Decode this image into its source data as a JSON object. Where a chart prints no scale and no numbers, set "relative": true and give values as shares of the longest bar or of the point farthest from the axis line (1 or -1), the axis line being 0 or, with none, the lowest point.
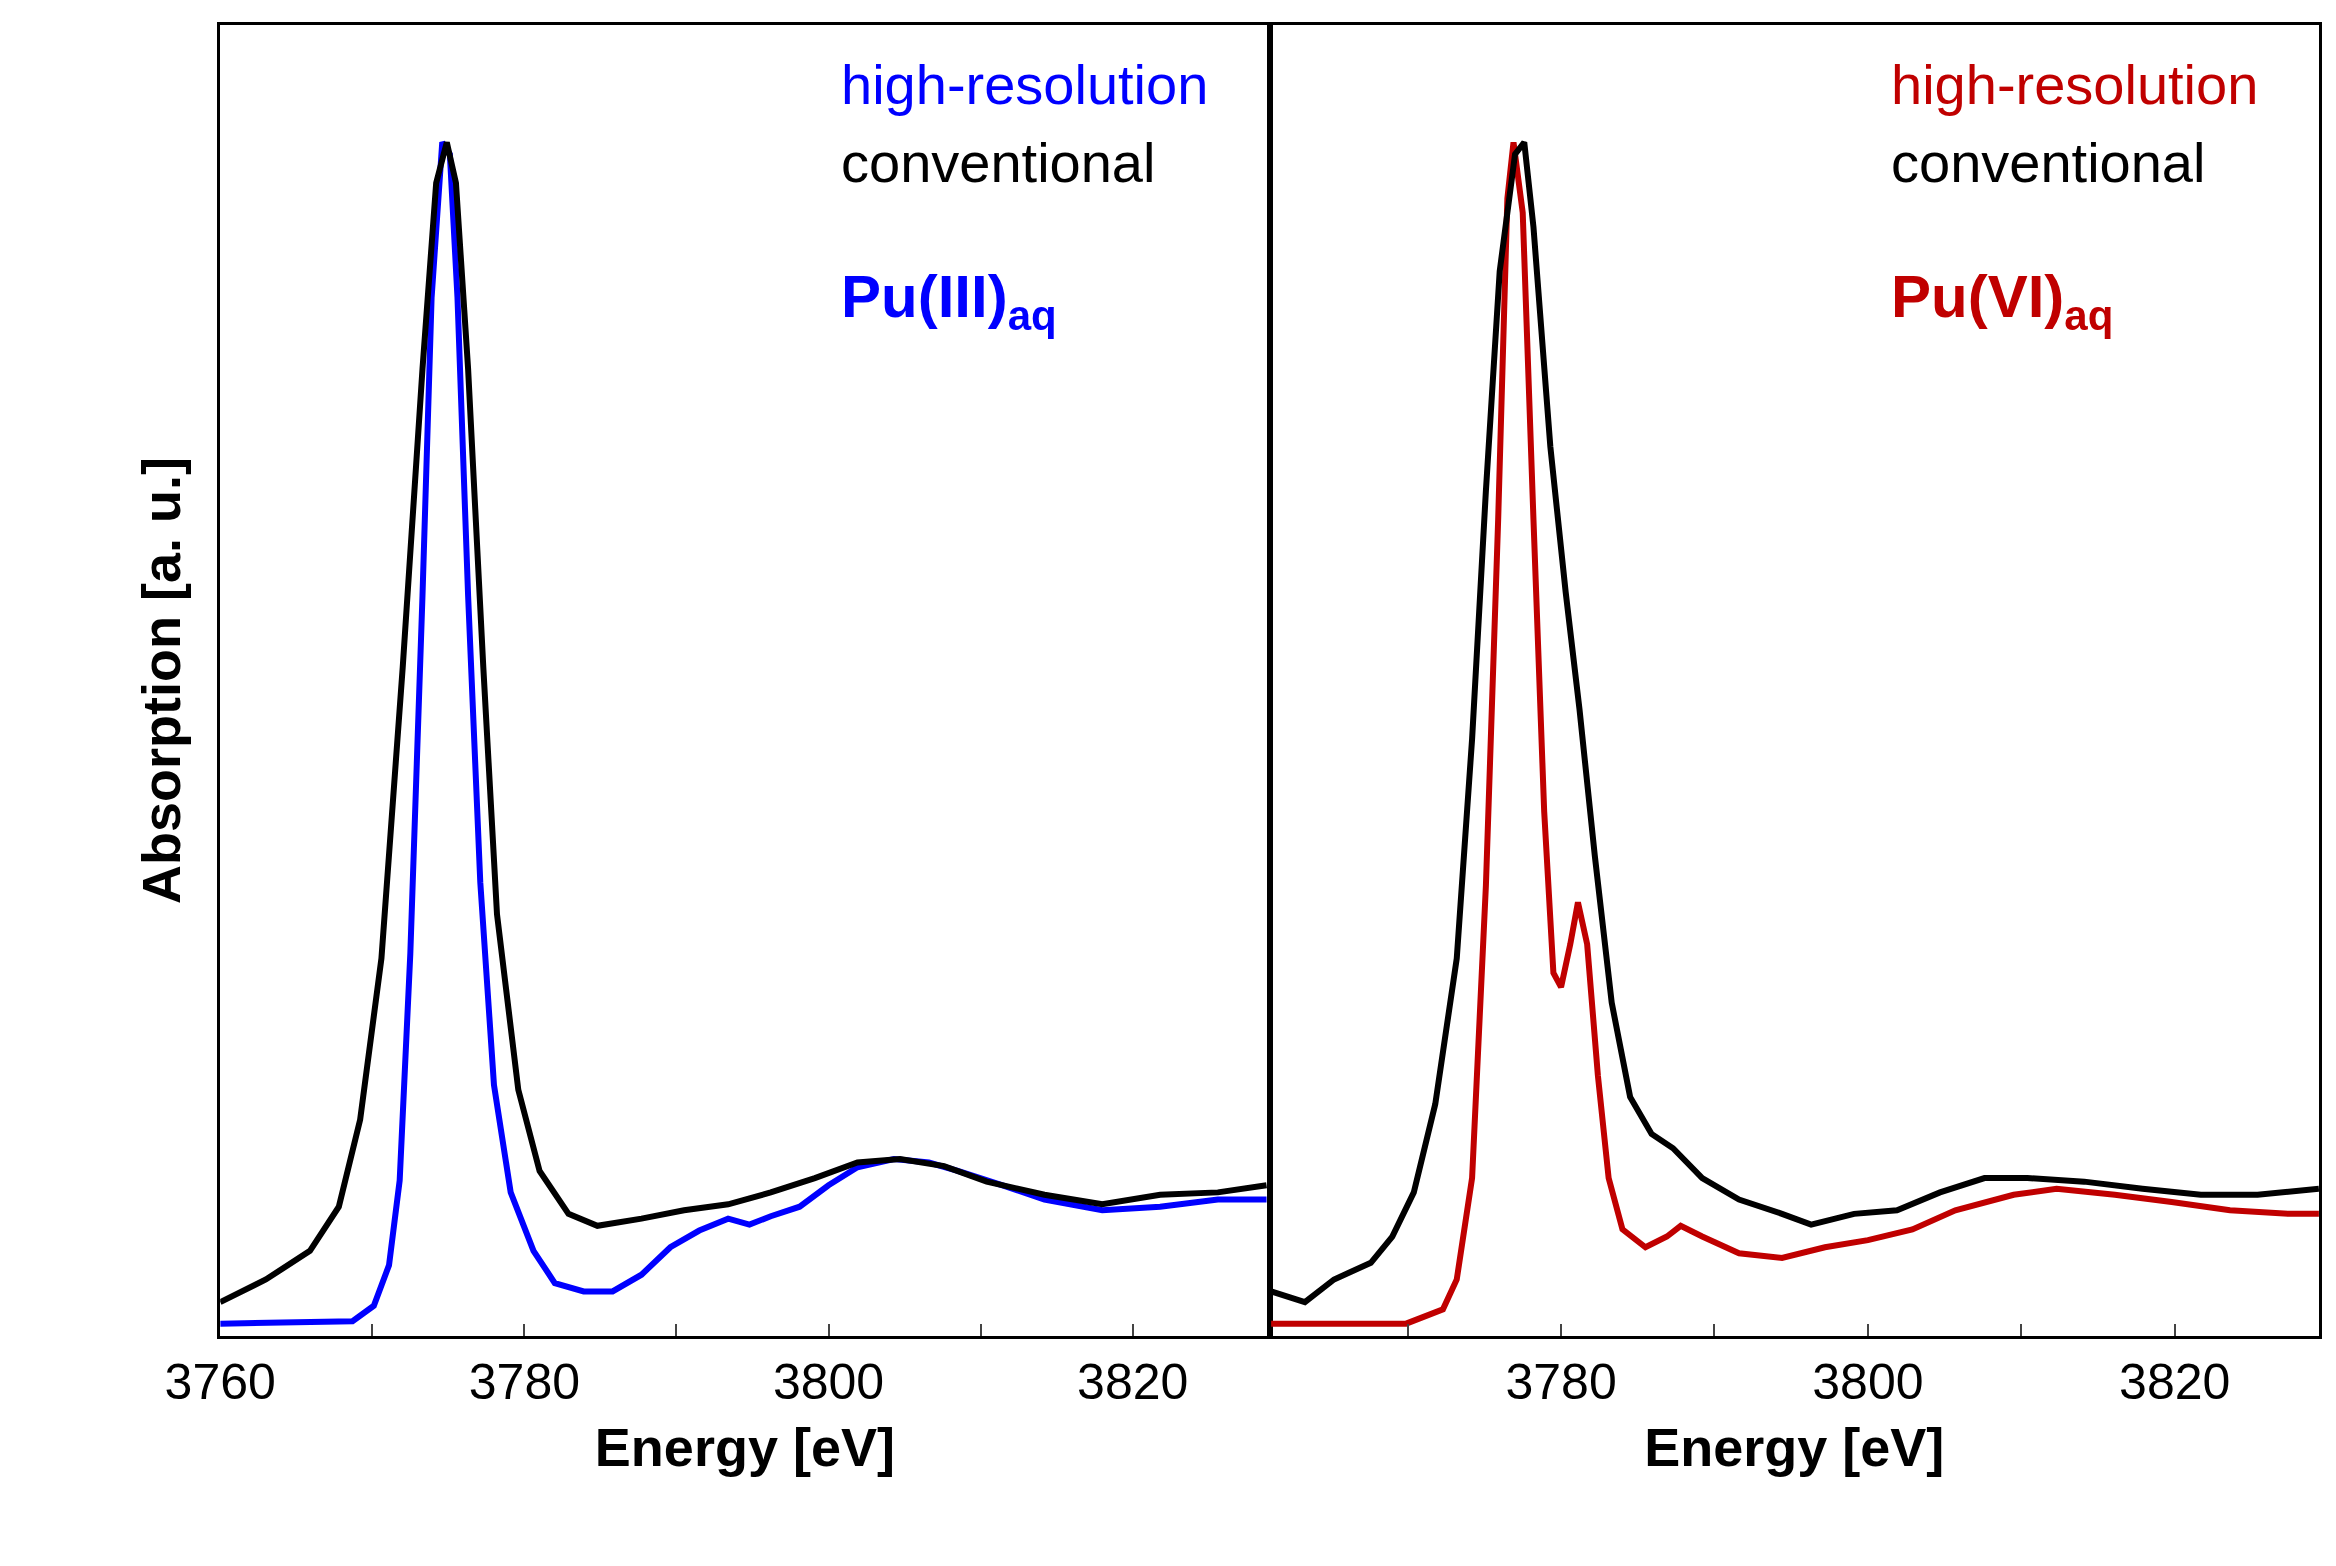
{
  "chart_data": [
    {
      "type": "line",
      "relative": true,
      "xlabel": "Energy [eV]",
      "ylabel": "Absorption [a. u.]",
      "annotations": [
        "Pu(III)$_{aq}$"
      ],
      "legend": "top right",
      "xlim": [
        3760,
        3829
      ],
      "xticks": [
        3760,
        {
          "value": 3770,
          "label": null
        },
        3780,
        {
          "value": 3790,
          "label": null
        },
        3800,
        {
          "value": 3810,
          "label": null
        },
        3820
      ],
      "series": [
        {
          "name": "high-resolution",
          "color": "#0000ff",
          "x": [
            3760,
            3768.7,
            3770.1,
            3771.1,
            3771.8,
            3772.5,
            3773.3,
            3773.9,
            3774.6,
            3775.1,
            3775.6,
            3776.3,
            3777.1,
            3778,
            3779.1,
            3780.6,
            3782,
            3783.9,
            3785.8,
            3787.7,
            3789.6,
            3791.5,
            3793.4,
            3794.8,
            3796.2,
            3798.1,
            3800,
            3801.9,
            3804.3,
            3806.6,
            3808.5,
            3811.4,
            3814.2,
            3818,
            3821.8,
            3825.6,
            3828.8
          ],
          "values": [
            0.01,
            0.012,
            0.025,
            0.059,
            0.13,
            0.32,
            0.62,
            0.87,
            1.0,
            0.99,
            0.87,
            0.62,
            0.38,
            0.21,
            0.12,
            0.071,
            0.044,
            0.037,
            0.037,
            0.051,
            0.074,
            0.088,
            0.098,
            0.093,
            0.1,
            0.108,
            0.126,
            0.141,
            0.148,
            0.145,
            0.138,
            0.126,
            0.114,
            0.105,
            0.108,
            0.114,
            0.114
          ]
        },
        {
          "name": "conventional",
          "color": "#000000",
          "x": [
            3760,
            3763,
            3765.9,
            3767.8,
            3769.2,
            3770.6,
            3772,
            3773.3,
            3774.2,
            3774.9,
            3775.5,
            3776.3,
            3777.3,
            3778.2,
            3779.6,
            3781,
            3782.9,
            3784.8,
            3787.7,
            3790.5,
            3793.4,
            3796.2,
            3799.1,
            3801.9,
            3804.7,
            3807.6,
            3810.4,
            3814.2,
            3818,
            3821.8,
            3825.6,
            3828.8
          ],
          "values": [
            0.028,
            0.047,
            0.071,
            0.108,
            0.181,
            0.316,
            0.56,
            0.81,
            0.966,
            1.0,
            0.966,
            0.81,
            0.56,
            0.353,
            0.206,
            0.138,
            0.102,
            0.092,
            0.098,
            0.105,
            0.11,
            0.12,
            0.132,
            0.145,
            0.148,
            0.142,
            0.129,
            0.118,
            0.11,
            0.118,
            0.12,
            0.126
          ]
        }
      ]
    },
    {
      "type": "line",
      "relative": true,
      "xlabel": "Energy [eV]",
      "annotations": [
        "Pu(VI)$_{aq}$"
      ],
      "legend": "top right",
      "xlim": [
        3761,
        3829.4
      ],
      "xticks": [
        {
          "value": 3770,
          "label": null
        },
        3780,
        {
          "value": 3790,
          "label": null
        },
        3800,
        {
          "value": 3810,
          "label": null
        },
        3820
      ],
      "series": [
        {
          "name": "high-resolution",
          "color": "#c00000",
          "x": [
            3761.1,
            3769.9,
            3772.3,
            3773.2,
            3774.2,
            3775.1,
            3775.9,
            3776.5,
            3776.9,
            3777.5,
            3778.2,
            3778.9,
            3779.5,
            3780,
            3780.6,
            3781.1,
            3781.7,
            3782.4,
            3783.1,
            3784,
            3785.5,
            3786.9,
            3787.8,
            3789.2,
            3791.6,
            3794.4,
            3797.2,
            3800,
            3802.9,
            3805.7,
            3809.5,
            3812.3,
            3816.1,
            3819.8,
            3823.6,
            3827.4,
            3829.4
          ],
          "values": [
            0.01,
            0.01,
            0.022,
            0.047,
            0.132,
            0.377,
            0.684,
            0.953,
            1.0,
            0.941,
            0.684,
            0.439,
            0.304,
            0.292,
            0.328,
            0.363,
            0.328,
            0.218,
            0.132,
            0.089,
            0.074,
            0.083,
            0.092,
            0.083,
            0.069,
            0.065,
            0.074,
            0.08,
            0.089,
            0.105,
            0.118,
            0.123,
            0.118,
            0.112,
            0.105,
            0.102,
            0.102
          ]
        },
        {
          "name": "conventional",
          "color": "#000000",
          "x": [
            3761.1,
            3763.3,
            3765.2,
            3767.6,
            3769,
            3770.4,
            3771.8,
            3773.2,
            3774.2,
            3775.1,
            3776,
            3777,
            3777.6,
            3778.2,
            3779.3,
            3780.3,
            3781.2,
            3782.2,
            3783.3,
            3784.5,
            3785.9,
            3787.3,
            3789.2,
            3791.6,
            3794.4,
            3796.3,
            3799.1,
            3801.9,
            3804.7,
            3807.6,
            3810.4,
            3814.1,
            3817.9,
            3821.7,
            3825.4,
            3829.4
          ],
          "values": [
            0.037,
            0.028,
            0.047,
            0.061,
            0.083,
            0.12,
            0.194,
            0.316,
            0.5,
            0.708,
            0.892,
            0.99,
            1.0,
            0.929,
            0.745,
            0.623,
            0.525,
            0.402,
            0.279,
            0.2,
            0.169,
            0.157,
            0.132,
            0.114,
            0.102,
            0.093,
            0.102,
            0.105,
            0.12,
            0.132,
            0.132,
            0.129,
            0.123,
            0.118,
            0.118,
            0.123
          ]
        }
      ]
    }
  ]
}
